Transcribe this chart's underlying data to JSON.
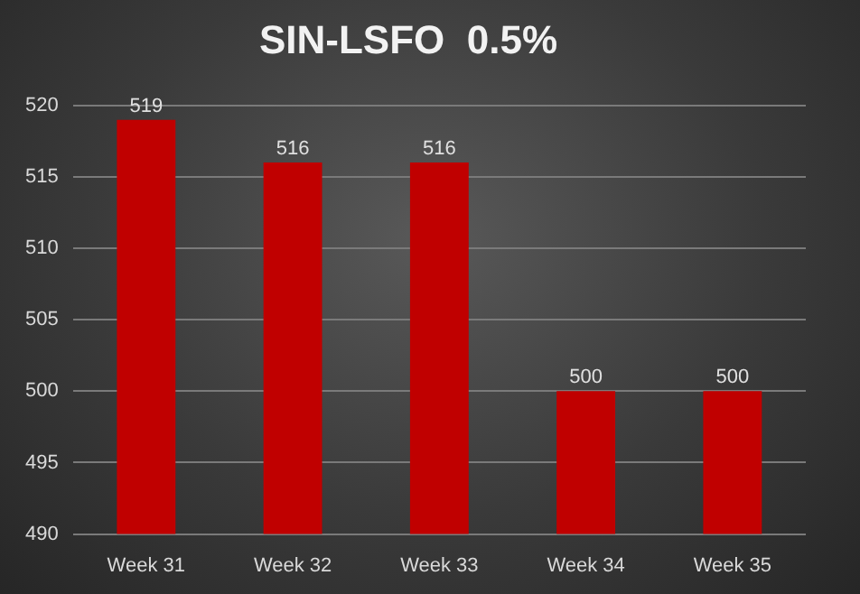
{
  "chart_data": {
    "type": "bar",
    "title": "SIN-LSFO  0.5%",
    "categories": [
      "Week 31",
      "Week 32",
      "Week 33",
      "Week 34",
      "Week 35"
    ],
    "values": [
      519,
      516,
      516,
      500,
      500
    ],
    "color": "#c00000",
    "ylim": [
      490,
      520
    ],
    "yticks": [
      490,
      495,
      500,
      505,
      510,
      515,
      520
    ],
    "grid": "y",
    "data_labels": true,
    "legend": false
  }
}
